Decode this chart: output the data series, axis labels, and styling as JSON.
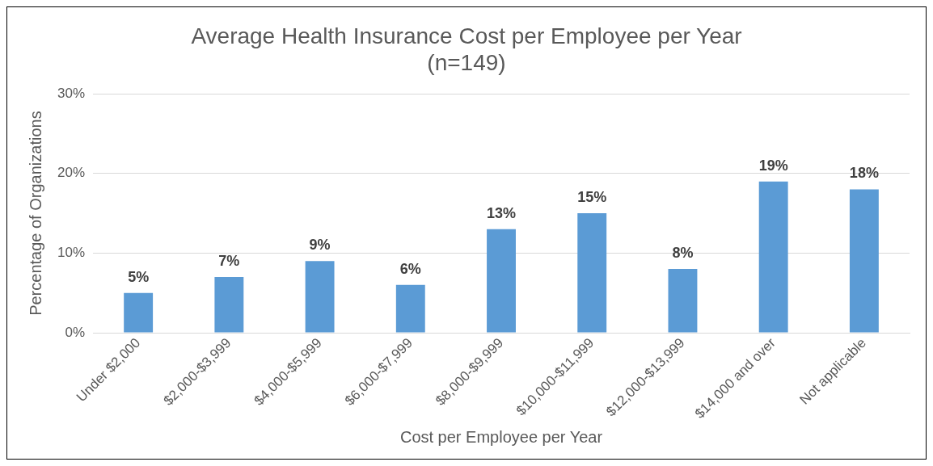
{
  "chart_data": {
    "type": "bar",
    "title": "Average Health Insurance Cost per Employee per Year",
    "subtitle": "(n=149)",
    "xlabel": "Cost per Employee per Year",
    "ylabel": "Percentage of Organizations",
    "categories": [
      "Under $2,000",
      "$2,000-$3,999",
      "$4,000-$5,999",
      "$6,000-$7,999",
      "$8,000-$9,999",
      "$10,000-$11,999",
      "$12,000-$13,999",
      "$14,000 and over",
      "Not applicable"
    ],
    "values": [
      5,
      7,
      9,
      6,
      13,
      15,
      8,
      19,
      18
    ],
    "value_labels": [
      "5%",
      "7%",
      "9%",
      "6%",
      "13%",
      "15%",
      "8%",
      "19%",
      "18%"
    ],
    "color": "#5b9bd5",
    "ylim": [
      0,
      30
    ],
    "yticks": [
      {
        "value": 0,
        "label": "0%"
      },
      {
        "value": 10,
        "label": "10%"
      },
      {
        "value": 20,
        "label": "20%"
      },
      {
        "value": 30,
        "label": "30%"
      }
    ],
    "grid": "y",
    "legend": false
  }
}
